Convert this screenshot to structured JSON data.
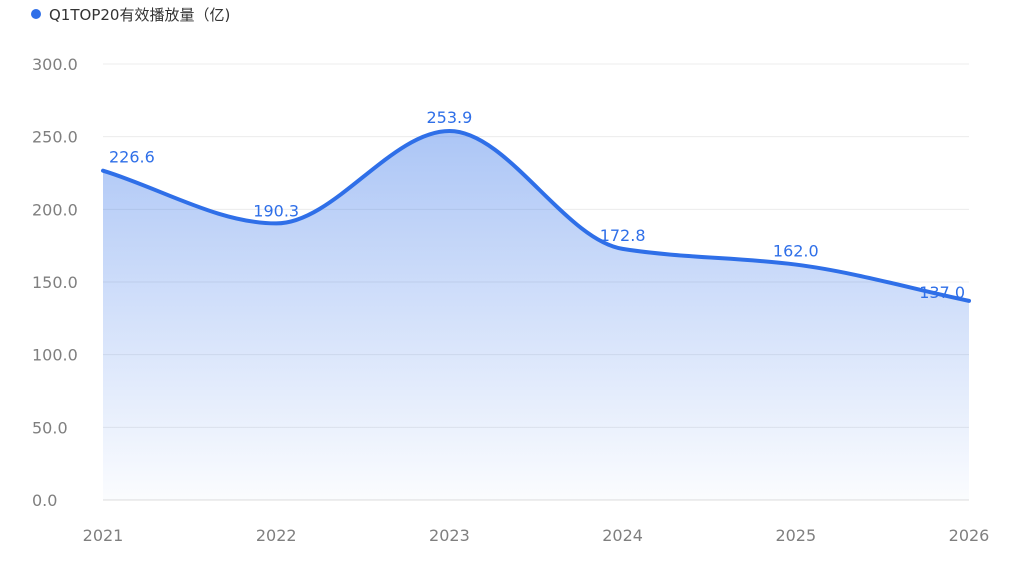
{
  "legend": {
    "label": "Q1TOP20有效播放量（亿)",
    "color": "#2f6fe8"
  },
  "chart_data": {
    "type": "area",
    "title": "",
    "xlabel": "",
    "ylabel": "",
    "categories": [
      "2021",
      "2022",
      "2023",
      "2024",
      "2025",
      "2026"
    ],
    "series": [
      {
        "name": "Q1TOP20有效播放量（亿)",
        "values": [
          226.6,
          190.3,
          253.9,
          172.8,
          162.0,
          137.0
        ],
        "color": "#2f6fe8",
        "smooth": true
      }
    ],
    "data_labels": [
      "226.6",
      "190.3",
      "253.9",
      "172.8",
      "162.0",
      "137.0"
    ],
    "ylim": [
      0,
      300
    ],
    "y_ticks": [
      0,
      50,
      100,
      150,
      200,
      250,
      300
    ],
    "y_tick_labels": [
      "0.0",
      "50.0",
      "100.0",
      "150.0",
      "200.0",
      "250.0",
      "300.0"
    ],
    "grid": true,
    "legend_position": "top-left"
  }
}
